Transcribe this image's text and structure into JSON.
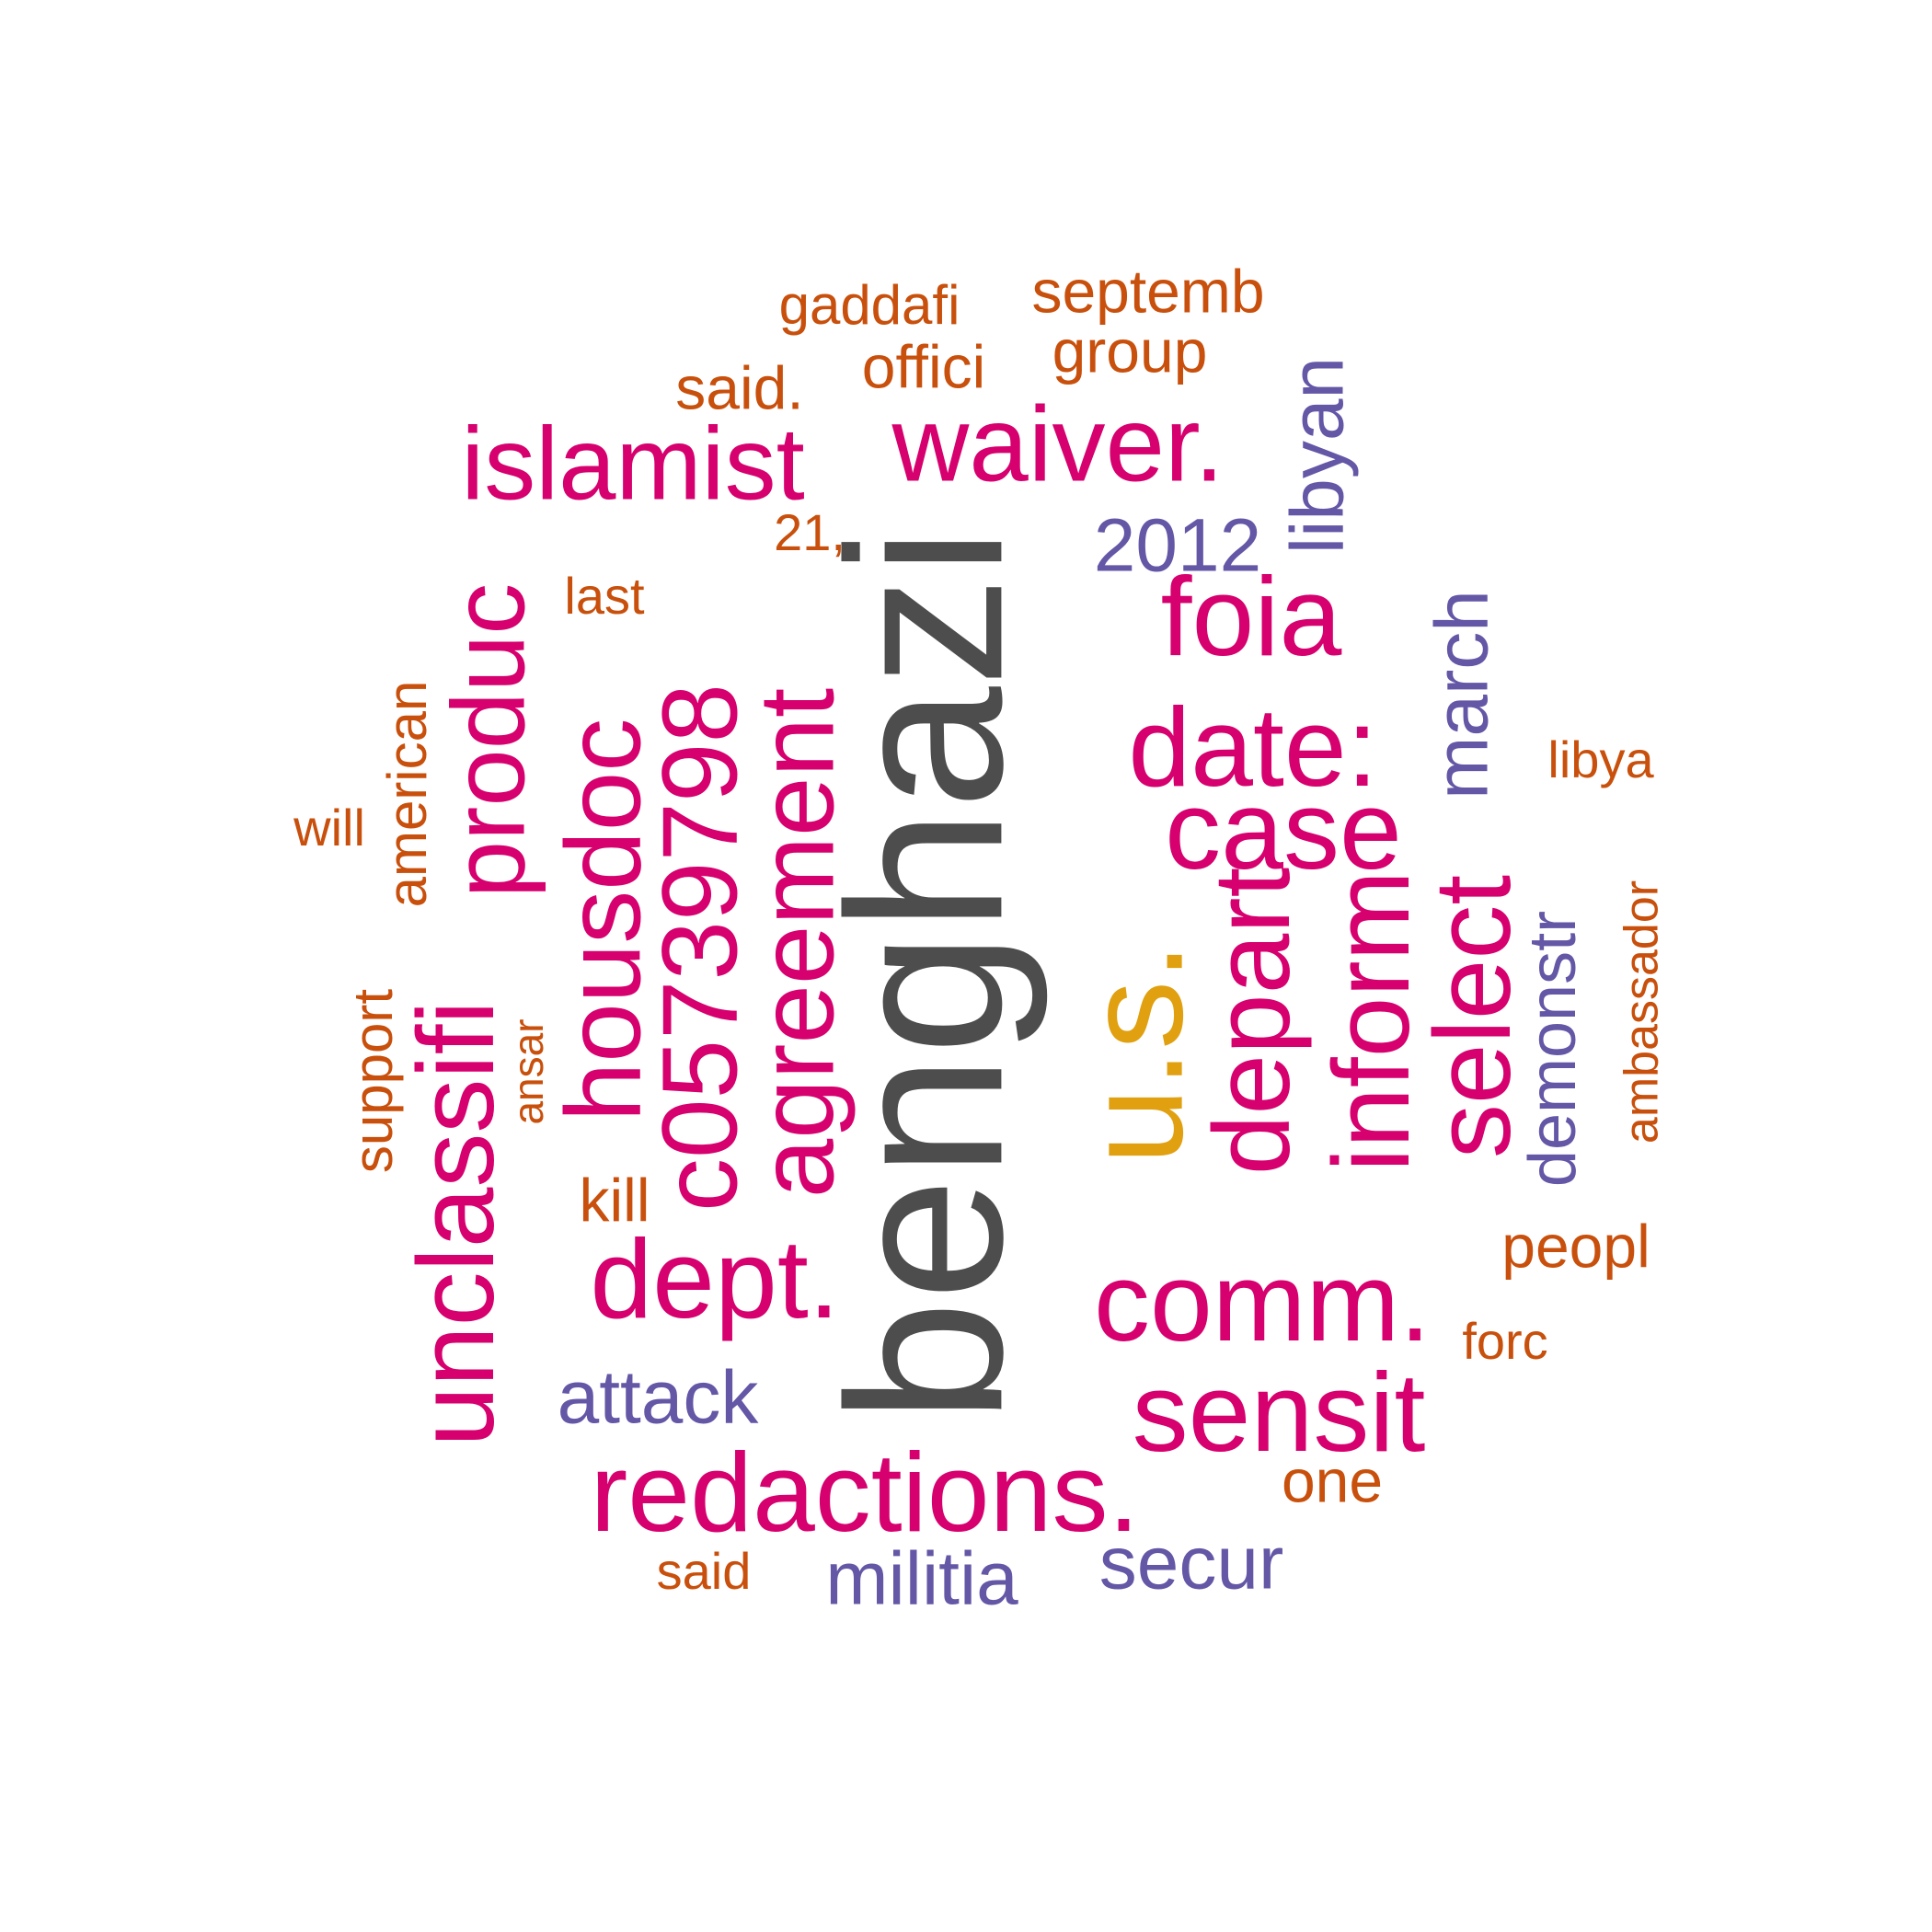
{
  "colors": {
    "gray": "#4d4d4d",
    "gold": "#e0a010",
    "magenta": "#d6006e",
    "purple": "#6357a6",
    "orange": "#c8500c"
  },
  "words": [
    {
      "text": "benghazi",
      "color": "gray"
    },
    {
      "text": "u.s.",
      "color": "gold"
    },
    {
      "text": "redactions.",
      "color": "magenta"
    },
    {
      "text": "unclassifi",
      "color": "magenta"
    },
    {
      "text": "waiver.",
      "color": "magenta"
    },
    {
      "text": "islamist",
      "color": "magenta"
    },
    {
      "text": "produc",
      "color": "magenta"
    },
    {
      "text": "housdoc",
      "color": "magenta"
    },
    {
      "text": "c05739798",
      "color": "magenta"
    },
    {
      "text": "agreement",
      "color": "magenta"
    },
    {
      "text": "foia",
      "color": "magenta"
    },
    {
      "text": "date:",
      "color": "magenta"
    },
    {
      "text": "case",
      "color": "magenta"
    },
    {
      "text": "depart",
      "color": "magenta"
    },
    {
      "text": "inform",
      "color": "magenta"
    },
    {
      "text": "select",
      "color": "magenta"
    },
    {
      "text": "dept.",
      "color": "magenta"
    },
    {
      "text": "comm.",
      "color": "magenta"
    },
    {
      "text": "sensit",
      "color": "magenta"
    },
    {
      "text": "2012",
      "color": "purple"
    },
    {
      "text": "libyan",
      "color": "purple"
    },
    {
      "text": "march",
      "color": "purple"
    },
    {
      "text": "demonstr",
      "color": "purple"
    },
    {
      "text": "attack",
      "color": "purple"
    },
    {
      "text": "militia",
      "color": "purple"
    },
    {
      "text": "secur",
      "color": "purple"
    },
    {
      "text": "gaddafi",
      "color": "orange"
    },
    {
      "text": "septemb",
      "color": "orange"
    },
    {
      "text": "group",
      "color": "orange"
    },
    {
      "text": "offici",
      "color": "orange"
    },
    {
      "text": "said.",
      "color": "orange"
    },
    {
      "text": "21,",
      "color": "orange"
    },
    {
      "text": "last",
      "color": "orange"
    },
    {
      "text": "american",
      "color": "orange"
    },
    {
      "text": "will",
      "color": "orange"
    },
    {
      "text": "support",
      "color": "orange"
    },
    {
      "text": "ansar",
      "color": "orange"
    },
    {
      "text": "kill",
      "color": "orange"
    },
    {
      "text": "libya",
      "color": "orange"
    },
    {
      "text": "ambassador",
      "color": "orange"
    },
    {
      "text": "peopl",
      "color": "orange"
    },
    {
      "text": "forc",
      "color": "orange"
    },
    {
      "text": "one",
      "color": "orange"
    },
    {
      "text": "said",
      "color": "orange"
    }
  ]
}
